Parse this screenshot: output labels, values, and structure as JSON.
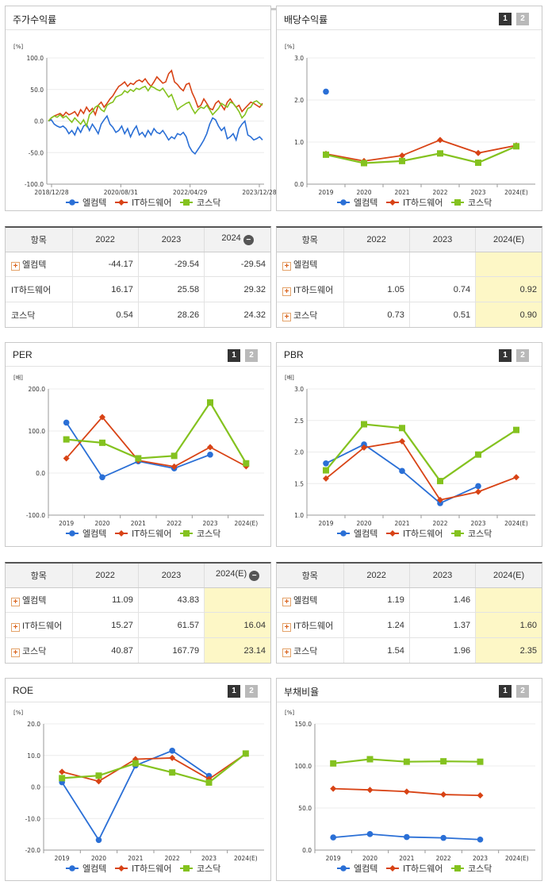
{
  "legend": [
    "엘컴텍",
    "IT하드웨어",
    "코스닥"
  ],
  "colors": [
    "#2a6fd6",
    "#d84315",
    "#84c21f"
  ],
  "stock": {
    "title": "주가수익률",
    "unit": "[%]",
    "chart_data": {
      "type": "line",
      "ylim": [
        -100,
        100
      ],
      "yticks": [
        "100.0",
        "50.0",
        "0.0",
        "-50.0",
        "-100.0"
      ],
      "xticks": [
        "2018/12/28",
        "2020/08/31",
        "2022/04/29",
        "2023/12/28"
      ],
      "series": [
        {
          "name": "엘컴텍",
          "values": [
            0,
            2,
            -5,
            -8,
            -10,
            -8,
            -12,
            -20,
            -15,
            -22,
            -10,
            -18,
            -8,
            -5,
            -15,
            -5,
            -12,
            -20,
            -5,
            2,
            8,
            -5,
            -10,
            -18,
            -15,
            -8,
            -20,
            -12,
            -25,
            -15,
            -8,
            -22,
            -18,
            -25,
            -15,
            -22,
            -12,
            -18,
            -20,
            -15,
            -22,
            -30,
            -25,
            -28,
            -20,
            -22,
            -18,
            -25,
            -40,
            -48,
            -52,
            -45,
            -38,
            -30,
            -20,
            -5,
            5,
            2,
            -8,
            -15,
            -10,
            -28,
            -25,
            -20,
            -30,
            -12,
            -5,
            0,
            -22,
            -25,
            -30,
            -28,
            -25,
            -30
          ]
        },
        {
          "name": "IT하드웨어",
          "values": [
            0,
            5,
            8,
            10,
            12,
            8,
            14,
            10,
            12,
            15,
            8,
            18,
            12,
            22,
            15,
            20,
            10,
            25,
            30,
            22,
            28,
            35,
            40,
            48,
            55,
            58,
            62,
            55,
            60,
            58,
            63,
            65,
            62,
            67,
            60,
            55,
            62,
            70,
            65,
            60,
            62,
            75,
            80,
            62,
            58,
            52,
            48,
            58,
            60,
            45,
            35,
            22,
            25,
            35,
            28,
            20,
            18,
            28,
            32,
            25,
            18,
            30,
            35,
            28,
            22,
            25,
            15,
            20,
            25,
            30,
            28,
            25,
            22,
            28
          ]
        },
        {
          "name": "코스닥",
          "values": [
            0,
            5,
            8,
            6,
            10,
            5,
            8,
            3,
            -2,
            5,
            0,
            -5,
            2,
            -8,
            10,
            15,
            22,
            25,
            18,
            15,
            25,
            28,
            30,
            38,
            40,
            42,
            48,
            45,
            50,
            47,
            52,
            50,
            53,
            55,
            48,
            55,
            53,
            50,
            48,
            52,
            45,
            38,
            42,
            30,
            18,
            22,
            25,
            28,
            30,
            20,
            12,
            18,
            22,
            20,
            25,
            18,
            10,
            15,
            20,
            28,
            25,
            22,
            30,
            28,
            22,
            15,
            5,
            10,
            20,
            22,
            30,
            32,
            28,
            25
          ]
        }
      ]
    }
  },
  "stock_table": {
    "headers": [
      "항목",
      "2022",
      "2023",
      "2024"
    ],
    "rows": [
      {
        "name": "엘컴텍",
        "plus": true,
        "values": [
          "-44.17",
          "-29.54",
          "-29.54"
        ]
      },
      {
        "name": "IT하드웨어",
        "plus": false,
        "values": [
          "16.17",
          "25.58",
          "29.32"
        ]
      },
      {
        "name": "코스닥",
        "plus": false,
        "values": [
          "0.54",
          "28.26",
          "24.32"
        ]
      }
    ]
  },
  "dividend": {
    "title": "배당수익률",
    "unit": "[%]",
    "chart_data": {
      "type": "line",
      "ylim": [
        0,
        3
      ],
      "yticks": [
        "3.0",
        "2.0",
        "1.0",
        "0.0"
      ],
      "categories": [
        "2019",
        "2020",
        "2021",
        "2022",
        "2023",
        "2024(E)"
      ],
      "series": [
        {
          "name": "엘컴텍",
          "values": [
            2.2,
            null,
            null,
            null,
            null,
            null
          ]
        },
        {
          "name": "IT하드웨어",
          "values": [
            0.72,
            0.55,
            0.68,
            1.05,
            0.74,
            0.92
          ]
        },
        {
          "name": "코스닥",
          "values": [
            0.7,
            0.5,
            0.55,
            0.73,
            0.51,
            0.9
          ]
        }
      ]
    }
  },
  "dividend_table": {
    "headers": [
      "항목",
      "2022",
      "2023",
      "2024(E)"
    ],
    "rows": [
      {
        "name": "엘컴텍",
        "plus": true,
        "values": [
          "",
          "",
          ""
        ]
      },
      {
        "name": "IT하드웨어",
        "plus": true,
        "values": [
          "1.05",
          "0.74",
          "0.92"
        ]
      },
      {
        "name": "코스닥",
        "plus": true,
        "values": [
          "0.73",
          "0.51",
          "0.90"
        ]
      }
    ]
  },
  "per": {
    "title": "PER",
    "unit": "[배]",
    "chart_data": {
      "type": "line",
      "ylim": [
        -100,
        200
      ],
      "yticks": [
        "200.0",
        "100.0",
        "0.0",
        "-100.0"
      ],
      "categories": [
        "2019",
        "2020",
        "2021",
        "2022",
        "2023",
        "2024(E)"
      ],
      "series": [
        {
          "name": "엘컴텍",
          "values": [
            120,
            -10,
            28,
            11.09,
            43.83,
            null
          ]
        },
        {
          "name": "IT하드웨어",
          "values": [
            35,
            133,
            30,
            15.27,
            61.57,
            16.04
          ]
        },
        {
          "name": "코스닥",
          "values": [
            80,
            72,
            35,
            40.87,
            167.79,
            23.14
          ]
        }
      ]
    }
  },
  "per_table": {
    "headers": [
      "항목",
      "2022",
      "2023",
      "2024(E)"
    ],
    "rows": [
      {
        "name": "엘컴텍",
        "plus": true,
        "values": [
          "11.09",
          "43.83",
          ""
        ]
      },
      {
        "name": "IT하드웨어",
        "plus": true,
        "values": [
          "15.27",
          "61.57",
          "16.04"
        ]
      },
      {
        "name": "코스닥",
        "plus": true,
        "values": [
          "40.87",
          "167.79",
          "23.14"
        ]
      }
    ]
  },
  "pbr": {
    "title": "PBR",
    "unit": "[배]",
    "chart_data": {
      "type": "line",
      "ylim": [
        1.0,
        3.0
      ],
      "yticks": [
        "3.0",
        "2.5",
        "2.0",
        "1.5",
        "1.0"
      ],
      "categories": [
        "2019",
        "2020",
        "2021",
        "2022",
        "2023",
        "2024(E)"
      ],
      "series": [
        {
          "name": "엘컴텍",
          "values": [
            1.82,
            2.12,
            1.7,
            1.19,
            1.46,
            null
          ]
        },
        {
          "name": "IT하드웨어",
          "values": [
            1.58,
            2.07,
            2.17,
            1.24,
            1.37,
            1.6
          ]
        },
        {
          "name": "코스닥",
          "values": [
            1.71,
            2.44,
            2.38,
            1.54,
            1.96,
            2.35
          ]
        }
      ]
    }
  },
  "pbr_table": {
    "headers": [
      "항목",
      "2022",
      "2023",
      "2024(E)"
    ],
    "rows": [
      {
        "name": "엘컴텍",
        "plus": true,
        "values": [
          "1.19",
          "1.46",
          ""
        ]
      },
      {
        "name": "IT하드웨어",
        "plus": true,
        "values": [
          "1.24",
          "1.37",
          "1.60"
        ]
      },
      {
        "name": "코스닥",
        "plus": true,
        "values": [
          "1.54",
          "1.96",
          "2.35"
        ]
      }
    ]
  },
  "roe": {
    "title": "ROE",
    "unit": "[%]",
    "chart_data": {
      "type": "line",
      "ylim": [
        -20,
        20
      ],
      "yticks": [
        "20.0",
        "10.0",
        "0.0",
        "-10.0",
        "-20.0"
      ],
      "categories": [
        "2019",
        "2020",
        "2021",
        "2022",
        "2023",
        "2024(E)"
      ],
      "series": [
        {
          "name": "엘컴텍",
          "values": [
            1.5,
            -16.8,
            6.8,
            11.5,
            3.5,
            null
          ]
        },
        {
          "name": "IT하드웨어",
          "values": [
            4.8,
            1.8,
            8.8,
            9.2,
            2.5,
            10.5
          ]
        },
        {
          "name": "코스닥",
          "values": [
            2.8,
            3.6,
            7.5,
            4.6,
            1.4,
            10.6
          ]
        }
      ]
    }
  },
  "debt": {
    "title": "부채비율",
    "unit": "[%]",
    "chart_data": {
      "type": "line",
      "ylim": [
        0,
        150
      ],
      "yticks": [
        "150.0",
        "100.0",
        "50.0",
        "0.0"
      ],
      "categories": [
        "2019",
        "2020",
        "2021",
        "2022",
        "2023",
        "2024(E)"
      ],
      "series": [
        {
          "name": "엘컴텍",
          "values": [
            15,
            19,
            15.5,
            14.5,
            12.5,
            null
          ]
        },
        {
          "name": "IT하드웨어",
          "values": [
            73,
            71.5,
            69.5,
            66,
            65,
            null
          ]
        },
        {
          "name": "코스닥",
          "values": [
            103,
            108,
            105,
            105.5,
            105,
            null
          ]
        }
      ]
    }
  }
}
